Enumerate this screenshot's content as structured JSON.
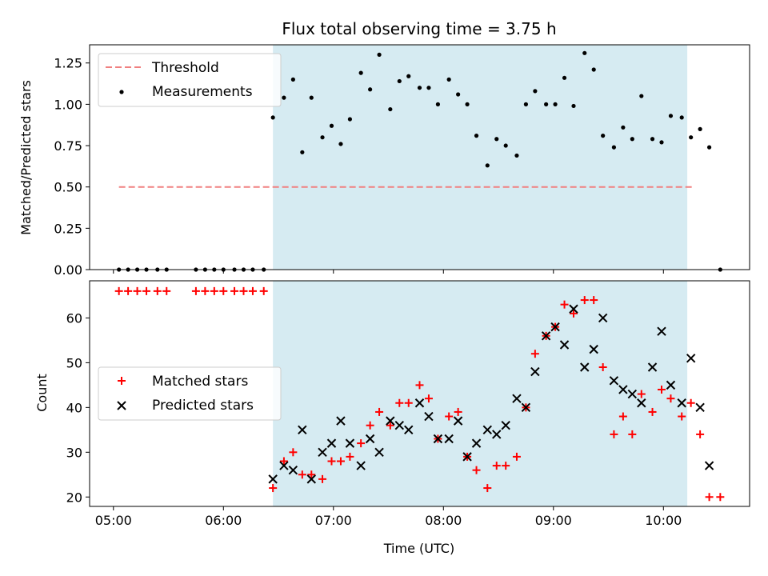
{
  "chart_data": [
    {
      "type": "scatter",
      "title": "Flux total observing time = 3.75 h",
      "xlabel": "",
      "ylabel": "Matched/Predicted stars",
      "ylim": [
        0,
        1.36
      ],
      "yticks": [
        "0.00",
        "0.25",
        "0.50",
        "0.75",
        "1.00",
        "1.25"
      ],
      "grid": false,
      "legend_position": "upper left",
      "shaded_interval": {
        "start": "06:27",
        "end": "10:13",
        "color": "#add8e6"
      },
      "series": [
        {
          "name": "Threshold",
          "style": "dashed-line",
          "color": "#f08080",
          "points": [
            [
              "05:03",
              0.5
            ],
            [
              "10:16",
              0.5
            ]
          ]
        },
        {
          "name": "Measurements",
          "style": "dot",
          "color": "#000000",
          "points": [
            [
              "05:03",
              0
            ],
            [
              "05:08",
              0
            ],
            [
              "05:13",
              0
            ],
            [
              "05:18",
              0
            ],
            [
              "05:24",
              0
            ],
            [
              "05:29",
              0
            ],
            [
              "05:45",
              0
            ],
            [
              "05:50",
              0
            ],
            [
              "05:55",
              0
            ],
            [
              "06:00",
              0
            ],
            [
              "06:06",
              0
            ],
            [
              "06:11",
              0
            ],
            [
              "06:16",
              0
            ],
            [
              "06:22",
              0
            ],
            [
              "06:27",
              0.92
            ],
            [
              "06:33",
              1.04
            ],
            [
              "06:38",
              1.15
            ],
            [
              "06:43",
              0.71
            ],
            [
              "06:48",
              1.04
            ],
            [
              "06:54",
              0.8
            ],
            [
              "06:59",
              0.87
            ],
            [
              "07:04",
              0.76
            ],
            [
              "07:09",
              0.91
            ],
            [
              "07:15",
              1.19
            ],
            [
              "07:20",
              1.09
            ],
            [
              "07:25",
              1.3
            ],
            [
              "07:31",
              0.97
            ],
            [
              "07:36",
              1.14
            ],
            [
              "07:41",
              1.17
            ],
            [
              "07:47",
              1.1
            ],
            [
              "07:52",
              1.1
            ],
            [
              "07:57",
              1.0
            ],
            [
              "08:03",
              1.15
            ],
            [
              "08:08",
              1.06
            ],
            [
              "08:13",
              1.0
            ],
            [
              "08:18",
              0.81
            ],
            [
              "08:24",
              0.63
            ],
            [
              "08:29",
              0.79
            ],
            [
              "08:34",
              0.75
            ],
            [
              "08:40",
              0.69
            ],
            [
              "08:45",
              1.0
            ],
            [
              "08:50",
              1.08
            ],
            [
              "08:56",
              1.0
            ],
            [
              "09:01",
              1.0
            ],
            [
              "09:06",
              1.16
            ],
            [
              "09:11",
              0.99
            ],
            [
              "09:17",
              1.31
            ],
            [
              "09:22",
              1.21
            ],
            [
              "09:27",
              0.81
            ],
            [
              "09:33",
              0.74
            ],
            [
              "09:38",
              0.86
            ],
            [
              "09:43",
              0.79
            ],
            [
              "09:48",
              1.05
            ],
            [
              "09:54",
              0.79
            ],
            [
              "09:59",
              0.77
            ],
            [
              "10:04",
              0.93
            ],
            [
              "10:10",
              0.92
            ],
            [
              "10:15",
              0.8
            ],
            [
              "10:20",
              0.85
            ],
            [
              "10:25",
              0.74
            ],
            [
              "10:31",
              0
            ]
          ]
        }
      ]
    },
    {
      "type": "scatter",
      "title": "",
      "xlabel": "Time (UTC)",
      "ylabel": "Count",
      "ylim": [
        17.9,
        68.3
      ],
      "yticks": [
        "20",
        "30",
        "40",
        "50",
        "60"
      ],
      "xticks": [
        "05:00",
        "06:00",
        "07:00",
        "08:00",
        "09:00",
        "10:00"
      ],
      "xlim": [
        "04:47",
        "10:47"
      ],
      "grid": false,
      "legend_position": "center left",
      "shaded_interval": {
        "start": "06:27",
        "end": "10:13",
        "color": "#add8e6"
      },
      "series": [
        {
          "name": "Matched stars",
          "style": "plus",
          "color": "#ff0000",
          "points": [
            [
              "05:03",
              66
            ],
            [
              "05:08",
              66
            ],
            [
              "05:13",
              66
            ],
            [
              "05:18",
              66
            ],
            [
              "05:24",
              66
            ],
            [
              "05:29",
              66
            ],
            [
              "05:45",
              66
            ],
            [
              "05:50",
              66
            ],
            [
              "05:55",
              66
            ],
            [
              "06:00",
              66
            ],
            [
              "06:06",
              66
            ],
            [
              "06:11",
              66
            ],
            [
              "06:16",
              66
            ],
            [
              "06:22",
              66
            ],
            [
              "06:27",
              22
            ],
            [
              "06:33",
              28
            ],
            [
              "06:38",
              30
            ],
            [
              "06:43",
              25
            ],
            [
              "06:48",
              25
            ],
            [
              "06:54",
              24
            ],
            [
              "06:59",
              28
            ],
            [
              "07:04",
              28
            ],
            [
              "07:09",
              29
            ],
            [
              "07:15",
              32
            ],
            [
              "07:20",
              36
            ],
            [
              "07:25",
              39
            ],
            [
              "07:31",
              36
            ],
            [
              "07:36",
              41
            ],
            [
              "07:41",
              41
            ],
            [
              "07:47",
              45
            ],
            [
              "07:52",
              42
            ],
            [
              "07:57",
              33
            ],
            [
              "08:03",
              38
            ],
            [
              "08:08",
              39
            ],
            [
              "08:13",
              29
            ],
            [
              "08:18",
              26
            ],
            [
              "08:24",
              22
            ],
            [
              "08:29",
              27
            ],
            [
              "08:34",
              27
            ],
            [
              "08:40",
              29
            ],
            [
              "08:45",
              40
            ],
            [
              "08:50",
              52
            ],
            [
              "08:56",
              56
            ],
            [
              "09:01",
              58
            ],
            [
              "09:06",
              63
            ],
            [
              "09:11",
              61
            ],
            [
              "09:17",
              64
            ],
            [
              "09:22",
              64
            ],
            [
              "09:27",
              49
            ],
            [
              "09:33",
              34
            ],
            [
              "09:38",
              38
            ],
            [
              "09:43",
              34
            ],
            [
              "09:48",
              43
            ],
            [
              "09:54",
              39
            ],
            [
              "09:59",
              44
            ],
            [
              "10:04",
              42
            ],
            [
              "10:10",
              38
            ],
            [
              "10:15",
              41
            ],
            [
              "10:20",
              34
            ],
            [
              "10:25",
              20
            ],
            [
              "10:31",
              20
            ]
          ]
        },
        {
          "name": "Predicted stars",
          "style": "x",
          "color": "#000000",
          "points": [
            [
              "06:27",
              24
            ],
            [
              "06:33",
              27
            ],
            [
              "06:38",
              26
            ],
            [
              "06:43",
              35
            ],
            [
              "06:48",
              24
            ],
            [
              "06:54",
              30
            ],
            [
              "06:59",
              32
            ],
            [
              "07:04",
              37
            ],
            [
              "07:09",
              32
            ],
            [
              "07:15",
              27
            ],
            [
              "07:20",
              33
            ],
            [
              "07:25",
              30
            ],
            [
              "07:31",
              37
            ],
            [
              "07:36",
              36
            ],
            [
              "07:41",
              35
            ],
            [
              "07:47",
              41
            ],
            [
              "07:52",
              38
            ],
            [
              "07:57",
              33
            ],
            [
              "08:03",
              33
            ],
            [
              "08:08",
              37
            ],
            [
              "08:13",
              29
            ],
            [
              "08:18",
              32
            ],
            [
              "08:24",
              35
            ],
            [
              "08:29",
              34
            ],
            [
              "08:34",
              36
            ],
            [
              "08:40",
              42
            ],
            [
              "08:45",
              40
            ],
            [
              "08:50",
              48
            ],
            [
              "08:56",
              56
            ],
            [
              "09:01",
              58
            ],
            [
              "09:06",
              54
            ],
            [
              "09:11",
              62
            ],
            [
              "09:17",
              49
            ],
            [
              "09:22",
              53
            ],
            [
              "09:27",
              60
            ],
            [
              "09:33",
              46
            ],
            [
              "09:38",
              44
            ],
            [
              "09:43",
              43
            ],
            [
              "09:48",
              41
            ],
            [
              "09:54",
              49
            ],
            [
              "09:59",
              57
            ],
            [
              "10:04",
              45
            ],
            [
              "10:10",
              41
            ],
            [
              "10:15",
              51
            ],
            [
              "10:20",
              40
            ],
            [
              "10:25",
              27
            ]
          ]
        }
      ]
    }
  ]
}
